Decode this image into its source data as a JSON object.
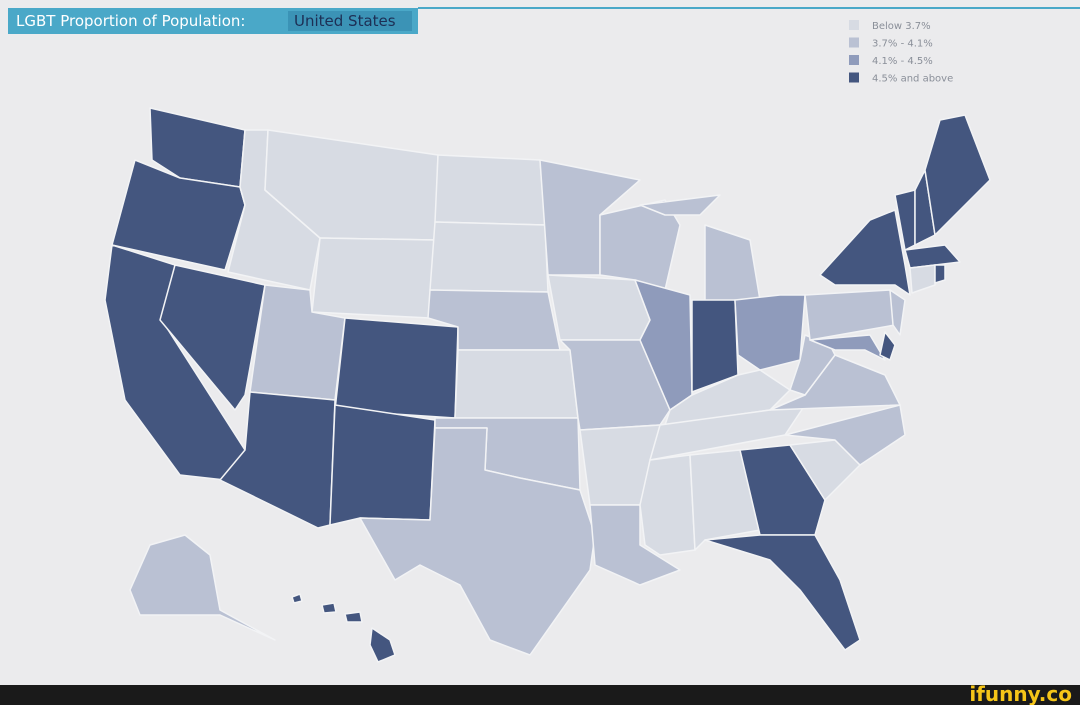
{
  "header": {
    "title": "LGBT Proportion of Population:",
    "highlight": "United States"
  },
  "legend": [
    {
      "label": "Below 3.7%",
      "color": "#d7dbe3"
    },
    {
      "label": "3.7% - 4.1%",
      "color": "#bac1d3"
    },
    {
      "label": "4.1% - 4.5%",
      "color": "#8f9bbb"
    },
    {
      "label": "4.5% and above",
      "color": "#44567f"
    }
  ],
  "footer": {
    "watermark": "ifunny.co"
  }
}
